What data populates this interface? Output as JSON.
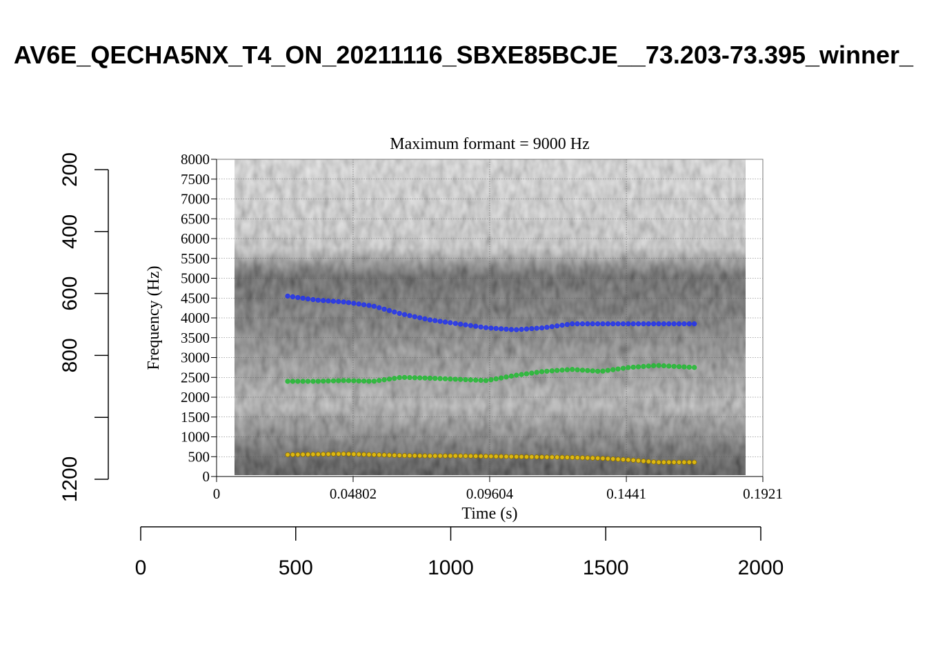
{
  "title": "AV6E_QECHA5NX_T4_ON_20211116_SBXE85BCJE__73.203-73.395_winner_",
  "chart_data": {
    "type": "scatter",
    "subtitle": "Maximum formant  =  9000 Hz",
    "xlabel": "Time (s)",
    "ylabel": "Frequency (Hz)",
    "xlim": [
      0,
      0.1921
    ],
    "ylim": [
      0,
      8000
    ],
    "x_ticks": [
      "0",
      "0.04802",
      "0.09604",
      "0.1441",
      "0.1921"
    ],
    "y_ticks": [
      "0",
      "500",
      "1000",
      "1500",
      "2000",
      "2500",
      "3000",
      "3500",
      "4000",
      "4500",
      "5000",
      "5500",
      "6000",
      "6500",
      "7000",
      "7500",
      "8000"
    ],
    "grid": true,
    "outer_axes": {
      "bottom": {
        "range": [
          0,
          2000
        ],
        "ticks": [
          "0",
          "500",
          "1000",
          "1500",
          "2000"
        ]
      },
      "left": {
        "range": [
          200,
          1200
        ],
        "reversed": true,
        "ticks": [
          "200",
          "400",
          "600",
          "800",
          "1000",
          "1200"
        ],
        "labels": [
          "200",
          "400",
          "600",
          "800",
          "",
          "1200"
        ]
      }
    },
    "series": [
      {
        "color": "#2233ee",
        "x": [
          0.025,
          0.035,
          0.045,
          0.055,
          0.065,
          0.075,
          0.085,
          0.095,
          0.105,
          0.115,
          0.125,
          0.135,
          0.145,
          0.155,
          0.168
        ],
        "y": [
          4550,
          4450,
          4400,
          4300,
          4100,
          3950,
          3850,
          3750,
          3700,
          3750,
          3850,
          3850,
          3850,
          3850,
          3850
        ]
      },
      {
        "color": "#22bb33",
        "x": [
          0.025,
          0.035,
          0.045,
          0.055,
          0.065,
          0.075,
          0.085,
          0.095,
          0.105,
          0.115,
          0.125,
          0.135,
          0.145,
          0.155,
          0.168
        ],
        "y": [
          2400,
          2400,
          2420,
          2400,
          2500,
          2480,
          2450,
          2420,
          2550,
          2650,
          2700,
          2650,
          2750,
          2800,
          2750
        ]
      },
      {
        "color": "#f0c400",
        "x": [
          0.025,
          0.035,
          0.045,
          0.055,
          0.065,
          0.075,
          0.085,
          0.095,
          0.105,
          0.115,
          0.125,
          0.135,
          0.145,
          0.155,
          0.168
        ],
        "y": [
          550,
          560,
          570,
          550,
          530,
          520,
          520,
          510,
          500,
          490,
          480,
          460,
          420,
          360,
          360
        ]
      }
    ]
  }
}
